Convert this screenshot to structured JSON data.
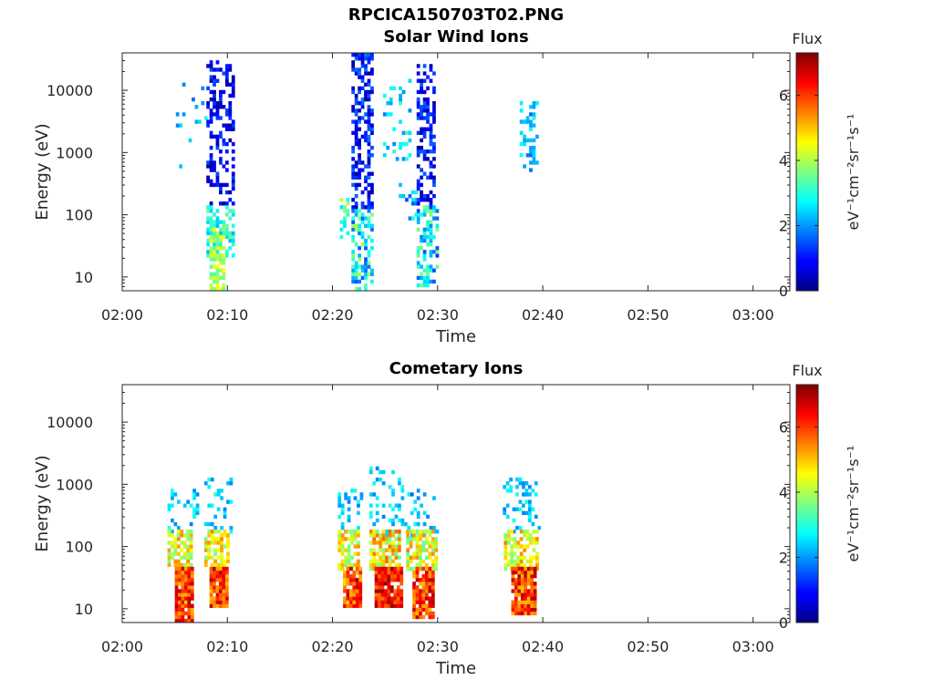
{
  "figure": {
    "title": "RPCICA150703T02.PNG"
  },
  "chart_data": [
    {
      "type": "heatmap",
      "title": "Solar Wind Ions",
      "xlabel": "Time",
      "ylabel": "Energy (eV)",
      "x_tick_labels": [
        "02:00",
        "02:10",
        "02:20",
        "02:30",
        "02:40",
        "02:50",
        "03:00"
      ],
      "y_tick_labels": [
        "10",
        "100",
        "1000",
        "10000"
      ],
      "y_ticks": [
        10,
        100,
        1000,
        10000
      ],
      "y_scale": "log",
      "ylim": [
        6,
        40000
      ],
      "xlim_minutes": [
        0,
        63.5
      ],
      "colorbar": {
        "label": "Flux",
        "unit": "eV⁻¹cm⁻²sr⁻¹s⁻¹",
        "range": [
          0,
          7.3
        ],
        "tick_labels": [
          "0",
          "2",
          "4",
          "6"
        ],
        "ticks": [
          0,
          2,
          4,
          6
        ],
        "colormap": "jet"
      },
      "bursts": [
        {
          "t_start": 4.5,
          "t_end": 8.0,
          "e_low": 600,
          "e_high": 15000,
          "flux_range": [
            1.5,
            3.0
          ],
          "density": 0.08
        },
        {
          "t_start": 8.0,
          "t_end": 10.7,
          "e_low": 150,
          "e_high": 30000,
          "flux_range": [
            0.2,
            1.5
          ],
          "density": 0.4
        },
        {
          "t_start": 8.0,
          "t_end": 10.7,
          "e_low": 20,
          "e_high": 150,
          "flux_range": [
            2.2,
            3.6
          ],
          "density": 0.5
        },
        {
          "t_start": 8.3,
          "t_end": 9.8,
          "e_low": 6,
          "e_high": 60,
          "flux_range": [
            3.2,
            4.6
          ],
          "density": 0.7
        },
        {
          "t_start": 20.7,
          "t_end": 21.4,
          "e_low": 40,
          "e_high": 200,
          "flux_range": [
            2.5,
            4.2
          ],
          "density": 0.4
        },
        {
          "t_start": 21.8,
          "t_end": 23.8,
          "e_low": 120,
          "e_high": 38000,
          "flux_range": [
            0.2,
            1.8
          ],
          "density": 0.5
        },
        {
          "t_start": 21.8,
          "t_end": 23.8,
          "e_low": 6,
          "e_high": 120,
          "flux_range": [
            1.5,
            4.0
          ],
          "density": 0.55
        },
        {
          "t_start": 24.8,
          "t_end": 27.3,
          "e_low": 700,
          "e_high": 15000,
          "flux_range": [
            1.8,
            3.2
          ],
          "density": 0.15
        },
        {
          "t_start": 26.3,
          "t_end": 28.0,
          "e_low": 80,
          "e_high": 400,
          "flux_range": [
            1.5,
            3.0
          ],
          "density": 0.2
        },
        {
          "t_start": 28.0,
          "t_end": 29.7,
          "e_low": 150,
          "e_high": 25000,
          "flux_range": [
            0.2,
            1.6
          ],
          "density": 0.5
        },
        {
          "t_start": 28.0,
          "t_end": 30.0,
          "e_low": 6,
          "e_high": 150,
          "flux_range": [
            1.2,
            3.8
          ],
          "density": 0.5
        },
        {
          "t_start": 37.8,
          "t_end": 39.3,
          "e_low": 500,
          "e_high": 7000,
          "flux_range": [
            1.6,
            2.8
          ],
          "density": 0.35
        }
      ]
    },
    {
      "type": "heatmap",
      "title": "Cometary Ions",
      "xlabel": "Time",
      "ylabel": "Energy (eV)",
      "x_tick_labels": [
        "02:00",
        "02:10",
        "02:20",
        "02:30",
        "02:40",
        "02:50",
        "03:00"
      ],
      "y_tick_labels": [
        "10",
        "100",
        "1000",
        "10000"
      ],
      "y_ticks": [
        10,
        100,
        1000,
        10000
      ],
      "y_scale": "log",
      "ylim": [
        6,
        40000
      ],
      "xlim_minutes": [
        0,
        63.5
      ],
      "colorbar": {
        "label": "Flux",
        "unit": "eV⁻¹cm⁻²sr⁻¹s⁻¹",
        "range": [
          0,
          7.3
        ],
        "tick_labels": [
          "0",
          "2",
          "4",
          "6"
        ],
        "ticks": [
          0,
          2,
          4,
          6
        ],
        "colormap": "jet"
      },
      "bursts": [
        {
          "t_start": 4.3,
          "t_end": 7.0,
          "e_low": 150,
          "e_high": 800,
          "flux_range": [
            1.8,
            3.0
          ],
          "density": 0.2
        },
        {
          "t_start": 4.3,
          "t_end": 6.5,
          "e_low": 50,
          "e_high": 200,
          "flux_range": [
            3.5,
            5.5
          ],
          "density": 0.7
        },
        {
          "t_start": 5.0,
          "t_end": 6.6,
          "e_low": 6,
          "e_high": 50,
          "flux_range": [
            5.0,
            7.0
          ],
          "density": 0.95
        },
        {
          "t_start": 7.8,
          "t_end": 10.5,
          "e_low": 150,
          "e_high": 1300,
          "flux_range": [
            1.8,
            3.0
          ],
          "density": 0.2
        },
        {
          "t_start": 7.8,
          "t_end": 10.2,
          "e_low": 50,
          "e_high": 200,
          "flux_range": [
            3.5,
            5.5
          ],
          "density": 0.7
        },
        {
          "t_start": 8.3,
          "t_end": 10.0,
          "e_low": 10,
          "e_high": 50,
          "flux_range": [
            5.0,
            7.0
          ],
          "density": 0.95
        },
        {
          "t_start": 20.5,
          "t_end": 22.8,
          "e_low": 150,
          "e_high": 900,
          "flux_range": [
            1.8,
            3.0
          ],
          "density": 0.2
        },
        {
          "t_start": 20.5,
          "t_end": 22.6,
          "e_low": 40,
          "e_high": 200,
          "flux_range": [
            3.5,
            5.5
          ],
          "density": 0.7
        },
        {
          "t_start": 21.0,
          "t_end": 22.8,
          "e_low": 10,
          "e_high": 45,
          "flux_range": [
            4.8,
            7.0
          ],
          "density": 0.9
        },
        {
          "t_start": 23.5,
          "t_end": 26.8,
          "e_low": 150,
          "e_high": 2000,
          "flux_range": [
            1.8,
            3.0
          ],
          "density": 0.2
        },
        {
          "t_start": 23.5,
          "t_end": 26.5,
          "e_low": 40,
          "e_high": 200,
          "flux_range": [
            3.5,
            5.8
          ],
          "density": 0.75
        },
        {
          "t_start": 24.0,
          "t_end": 26.5,
          "e_low": 10,
          "e_high": 45,
          "flux_range": [
            5.5,
            7.2
          ],
          "density": 0.95
        },
        {
          "t_start": 26.8,
          "t_end": 30.0,
          "e_low": 150,
          "e_high": 800,
          "flux_range": [
            1.6,
            2.8
          ],
          "density": 0.2
        },
        {
          "t_start": 27.0,
          "t_end": 30.0,
          "e_low": 40,
          "e_high": 200,
          "flux_range": [
            3.3,
            5.5
          ],
          "density": 0.7
        },
        {
          "t_start": 27.6,
          "t_end": 29.6,
          "e_low": 7,
          "e_high": 45,
          "flux_range": [
            5.0,
            7.0
          ],
          "density": 0.9
        },
        {
          "t_start": 36.2,
          "t_end": 39.5,
          "e_low": 150,
          "e_high": 1300,
          "flux_range": [
            1.8,
            3.0
          ],
          "density": 0.25
        },
        {
          "t_start": 36.3,
          "t_end": 39.5,
          "e_low": 40,
          "e_high": 200,
          "flux_range": [
            3.5,
            5.5
          ],
          "density": 0.7
        },
        {
          "t_start": 37.0,
          "t_end": 39.2,
          "e_low": 8,
          "e_high": 45,
          "flux_range": [
            5.0,
            7.0
          ],
          "density": 0.95
        }
      ]
    }
  ]
}
